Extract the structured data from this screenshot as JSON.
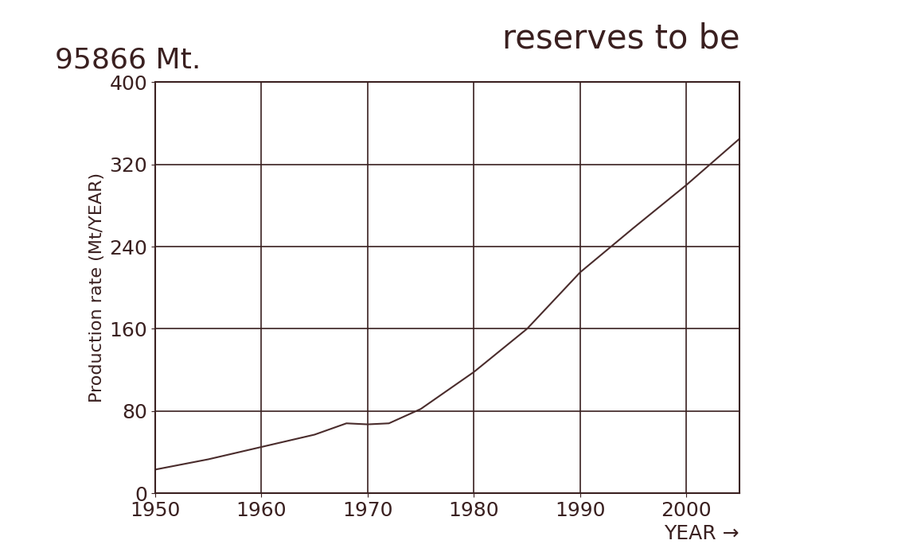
{
  "chart_data": {
    "type": "line",
    "annotations": [
      "reserves to be",
      "95866 Mt."
    ],
    "x_label": "YEAR →",
    "y_label": "Production rate (Mt/YEAR)",
    "x": [
      1950,
      1955,
      1960,
      1965,
      1968,
      1970,
      1972,
      1975,
      1980,
      1985,
      1990,
      1995,
      2000,
      2005
    ],
    "values": [
      23,
      33,
      45,
      57,
      68,
      67,
      68,
      82,
      118,
      160,
      215,
      258,
      300,
      345
    ],
    "color": "#4a2c2c",
    "xlim": [
      1950,
      2005
    ],
    "xticks": [
      1950,
      1960,
      1970,
      1980,
      1990,
      2000
    ],
    "ylim": [
      0,
      400
    ],
    "yticks": [
      0,
      80,
      160,
      240,
      320,
      400
    ],
    "grid": true
  }
}
